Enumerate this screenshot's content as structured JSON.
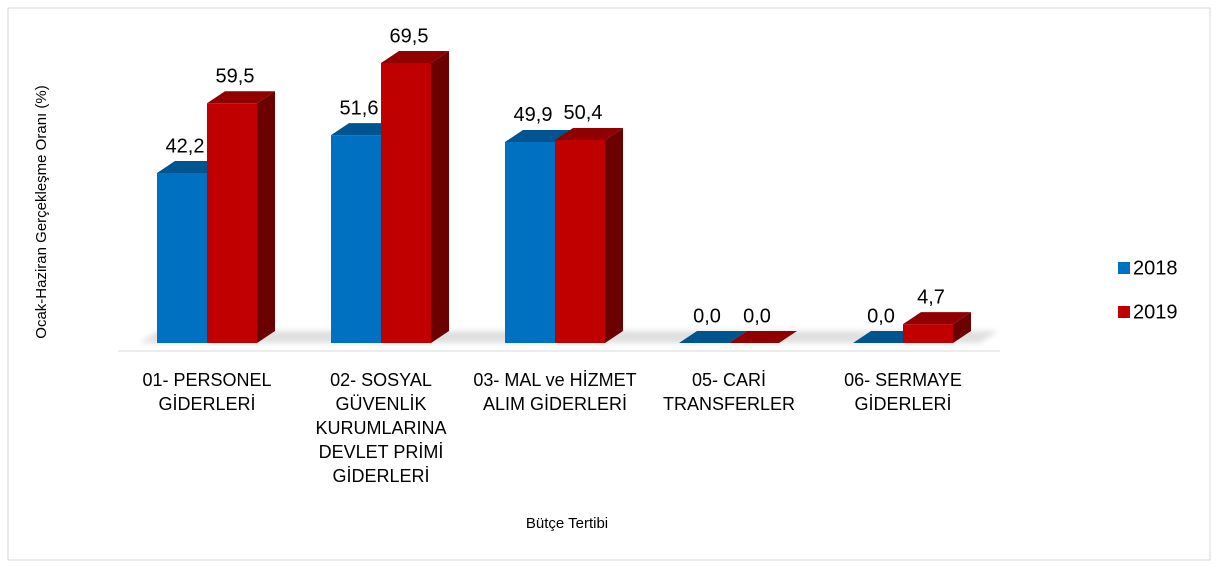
{
  "chart_data": {
    "type": "bar3d",
    "x_label": "Bütçe Tertibi",
    "y_label": "Ocak-Haziran Gerçekleşme Oranı (%)",
    "categories": [
      "01- PERSONEL GİDERLERİ",
      "02- SOSYAL GÜVENLİK KURUMLARINA DEVLET PRİMİ GİDERLERİ",
      "03- MAL ve HİZMET ALIM GİDERLERİ",
      "05- CARİ TRANSFERLER",
      "06- SERMAYE GİDERLERİ"
    ],
    "series": [
      {
        "name": "2018",
        "color": "#0070c0",
        "values": [
          42.2,
          51.6,
          49.9,
          0.0,
          0.0
        ],
        "value_labels": [
          "42,2",
          "51,6",
          "49,9",
          "0,0",
          "0,0"
        ]
      },
      {
        "name": "2019",
        "color": "#c00000",
        "values": [
          59.5,
          69.5,
          50.4,
          0.0,
          4.7
        ],
        "value_labels": [
          "59,5",
          "69,5",
          "50,4",
          "0,0",
          "4,7"
        ]
      }
    ],
    "legend": "right"
  }
}
